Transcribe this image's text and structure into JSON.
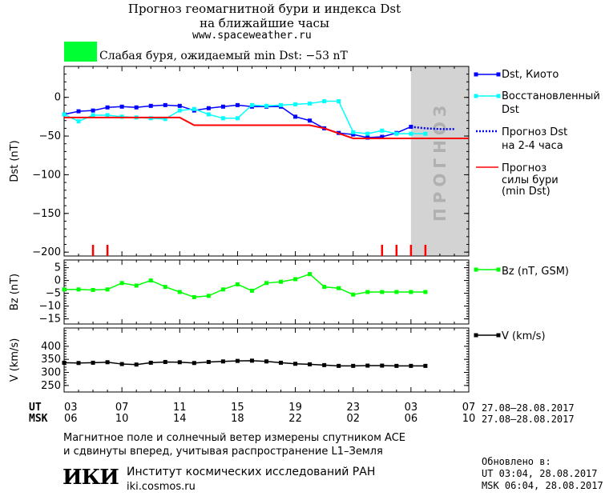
{
  "header": {
    "title_line1": "Прогноз геомагнитной бури и индекса Dst",
    "title_line2": "на ближайшие часы",
    "site": "www.spaceweather.ru",
    "status_color": "#00ff33",
    "status_text": "Слабая буря, ожидаемый min Dst: −53 nT"
  },
  "legend": {
    "dst_kyoto": "Dst, Киото",
    "restored_1": "Восстановленный",
    "restored_2": "Dst",
    "forecast_1": "Прогноз Dst",
    "forecast_2": "на 2-4 часа",
    "storm_1": "Прогноз",
    "storm_2": "силы бури",
    "storm_3": "(min Dst)",
    "bz": "Bz (nT, GSM)",
    "v": "V (km/s)"
  },
  "forecast_band_label": "ПРОГНОЗ",
  "axis_rows": {
    "ut_label": "UT",
    "msk_label": "MSK",
    "ut_ticks": [
      "03",
      "07",
      "11",
      "15",
      "19",
      "23",
      "03",
      "07"
    ],
    "msk_ticks": [
      "06",
      "10",
      "14",
      "18",
      "22",
      "02",
      "06",
      "10"
    ],
    "ut_range": "27.08–28.08.2017",
    "msk_range": "27.08–28.08.2017"
  },
  "footer": {
    "note_1": "Магнитное поле и солнечный ветер измерены спутником ACE",
    "note_2": "и сдвинуты вперед, учитывая распространение L1–Земля",
    "logo": "ИКИ",
    "institute": "Институт космических исследований РАН",
    "institute_site": "iki.cosmos.ru",
    "updated_label": "Обновлено в:",
    "updated_ut": "UT  03:04, 28.08.2017",
    "updated_msk": "MSK 06:04, 28.08.2017"
  },
  "colors": {
    "dst": "#0000ff",
    "restored": "#00ffff",
    "storm": "#ff0000",
    "bz": "#00ff00",
    "v": "#000000",
    "band": "#d3d3d3"
  },
  "chart_data": [
    {
      "type": "line",
      "ylabel": "Dst (nT)",
      "xlim": [
        0,
        28
      ],
      "ylim": [
        -205,
        40
      ],
      "yticks": [
        0,
        -50,
        -100,
        -150,
        -200
      ],
      "forecast_band_x": [
        24,
        28
      ],
      "series": [
        {
          "name": "Dst, Киото",
          "x": [
            0,
            1,
            2,
            3,
            4,
            5,
            6,
            7,
            8,
            9,
            10,
            11,
            12,
            13,
            14,
            15,
            16,
            17,
            18,
            19,
            20,
            21,
            22,
            23,
            24
          ],
          "y": [
            -22,
            -18,
            -17,
            -13,
            -12,
            -13,
            -11,
            -10,
            -11,
            -17,
            -14,
            -12,
            -10,
            -12,
            -12,
            -12,
            -25,
            -30,
            -40,
            -46,
            -48,
            -52,
            -51,
            -46,
            -38
          ]
        },
        {
          "name": "Восстановленный Dst",
          "x": [
            0,
            1,
            2,
            3,
            4,
            5,
            6,
            7,
            8,
            9,
            10,
            11,
            12,
            13,
            14,
            15,
            16,
            17,
            18,
            19,
            20,
            21,
            22,
            23,
            24,
            25
          ],
          "y": [
            -22,
            -31,
            -23,
            -23,
            -25,
            -26,
            -27,
            -28,
            -17,
            -15,
            -22,
            -27,
            -27,
            -10,
            -11,
            -10,
            -9,
            -8,
            -5,
            -5,
            -45,
            -47,
            -43,
            -47,
            -47,
            -47
          ]
        },
        {
          "name": "Прогноз Dst на 2-4 часа",
          "x": [
            24,
            25,
            26,
            27
          ],
          "y": [
            -38,
            -40,
            -41,
            -41
          ]
        },
        {
          "name": "Прогноз силы бури (min Dst)",
          "x": [
            0,
            8,
            9,
            17,
            18,
            20,
            28
          ],
          "y": [
            -26,
            -26,
            -36,
            -36,
            -40,
            -53,
            -53
          ]
        }
      ],
      "markers_x": [
        2,
        3,
        22,
        23,
        24,
        25
      ]
    },
    {
      "type": "line",
      "ylabel": "Bz (nT)",
      "xlim": [
        0,
        28
      ],
      "ylim": [
        -17,
        8
      ],
      "yticks": [
        5,
        0,
        -5,
        -10,
        -15
      ],
      "series": [
        {
          "name": "Bz (nT, GSM)",
          "x": [
            0,
            1,
            2,
            3,
            4,
            5,
            6,
            7,
            8,
            9,
            10,
            11,
            12,
            13,
            14,
            15,
            16,
            17,
            18,
            19,
            20,
            21,
            22,
            23,
            24,
            25
          ],
          "y": [
            -3.5,
            -3.5,
            -3.7,
            -3.5,
            -1,
            -2,
            0,
            -2.5,
            -4.5,
            -6.5,
            -6,
            -3.5,
            -1.5,
            -4,
            -1,
            -0.5,
            0.5,
            2.5,
            -2.5,
            -3,
            -5.5,
            -4.5,
            -4.5,
            -4.5,
            -4.5,
            -4.5
          ]
        }
      ]
    },
    {
      "type": "line",
      "ylabel": "V (km/s)",
      "xlim": [
        0,
        28
      ],
      "ylim": [
        225,
        470
      ],
      "yticks": [
        400,
        350,
        300,
        250
      ],
      "series": [
        {
          "name": "V (km/s)",
          "x": [
            0,
            1,
            2,
            3,
            4,
            5,
            6,
            7,
            8,
            9,
            10,
            11,
            12,
            13,
            14,
            15,
            16,
            17,
            18,
            19,
            20,
            21,
            22,
            23,
            24,
            25
          ],
          "y": [
            337,
            336,
            337,
            339,
            332,
            330,
            337,
            340,
            339,
            336,
            340,
            342,
            344,
            345,
            342,
            337,
            333,
            331,
            328,
            325,
            325,
            326,
            326,
            325,
            325,
            325
          ]
        }
      ]
    }
  ]
}
